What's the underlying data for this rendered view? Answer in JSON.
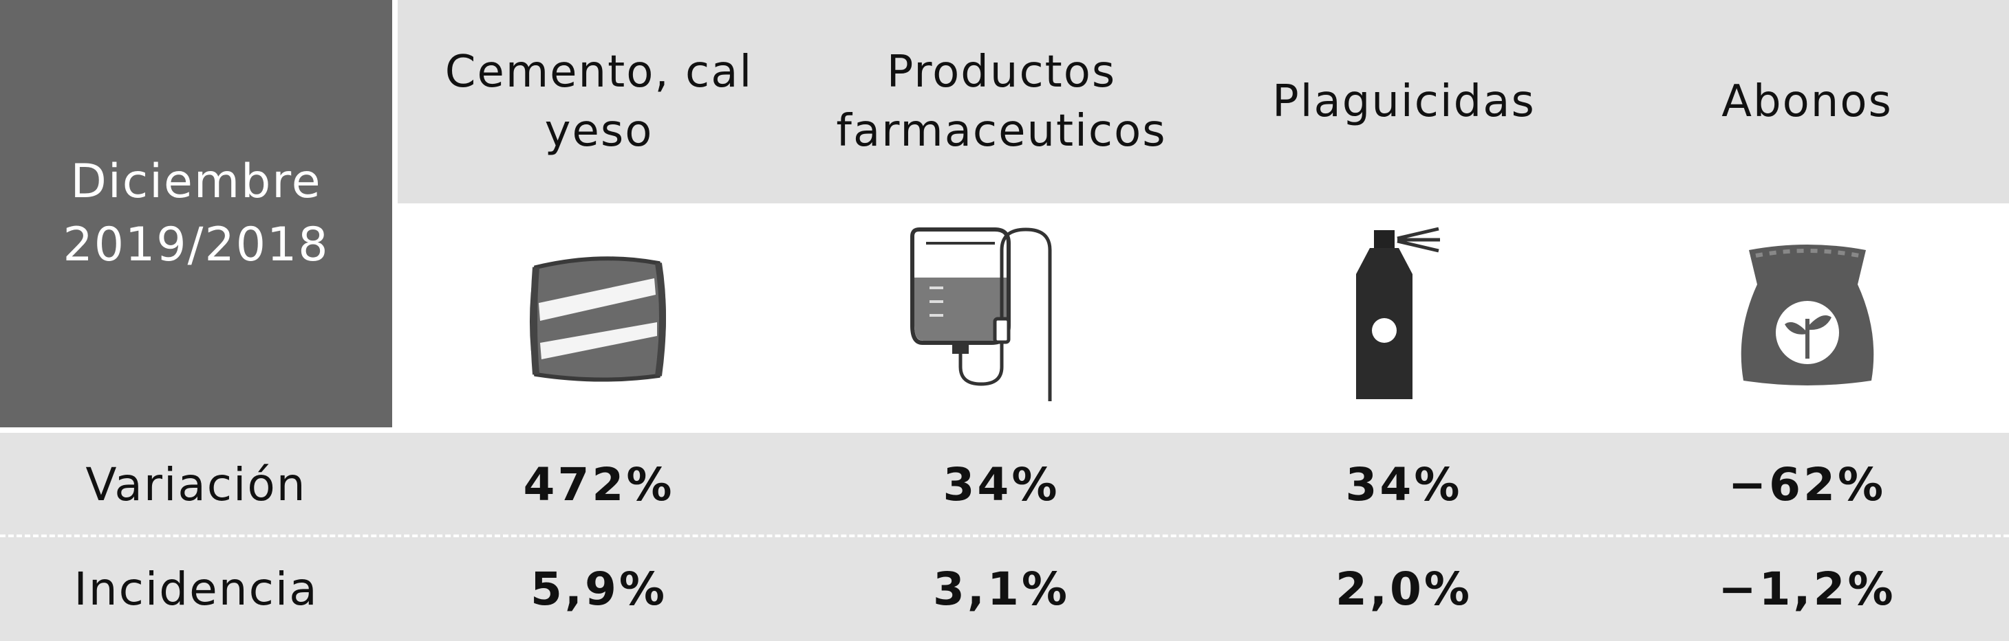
{
  "period": {
    "label": "Diciembre\n2019/2018"
  },
  "categories": [
    {
      "label": "Cemento, cal\nyeso",
      "icon": "cement-bag-icon"
    },
    {
      "label": "Productos\nfarmaceuticos",
      "icon": "iv-drip-bag-icon"
    },
    {
      "label": "Plaguicidas",
      "icon": "spray-can-icon"
    },
    {
      "label": "Abonos",
      "icon": "fertilizer-sack-icon"
    }
  ],
  "rows": [
    {
      "label": "Variación",
      "values": [
        "472%",
        "34%",
        "34%",
        "−62%"
      ]
    },
    {
      "label": "Incidencia",
      "values": [
        "5,9%",
        "3,1%",
        "2,0%",
        "−1,2%"
      ]
    }
  ],
  "colors": {
    "period_bg": "#666666",
    "header_bg": "#e1e1e1",
    "row_bg": "#e3e3e3",
    "icon_fill": "#555555"
  }
}
